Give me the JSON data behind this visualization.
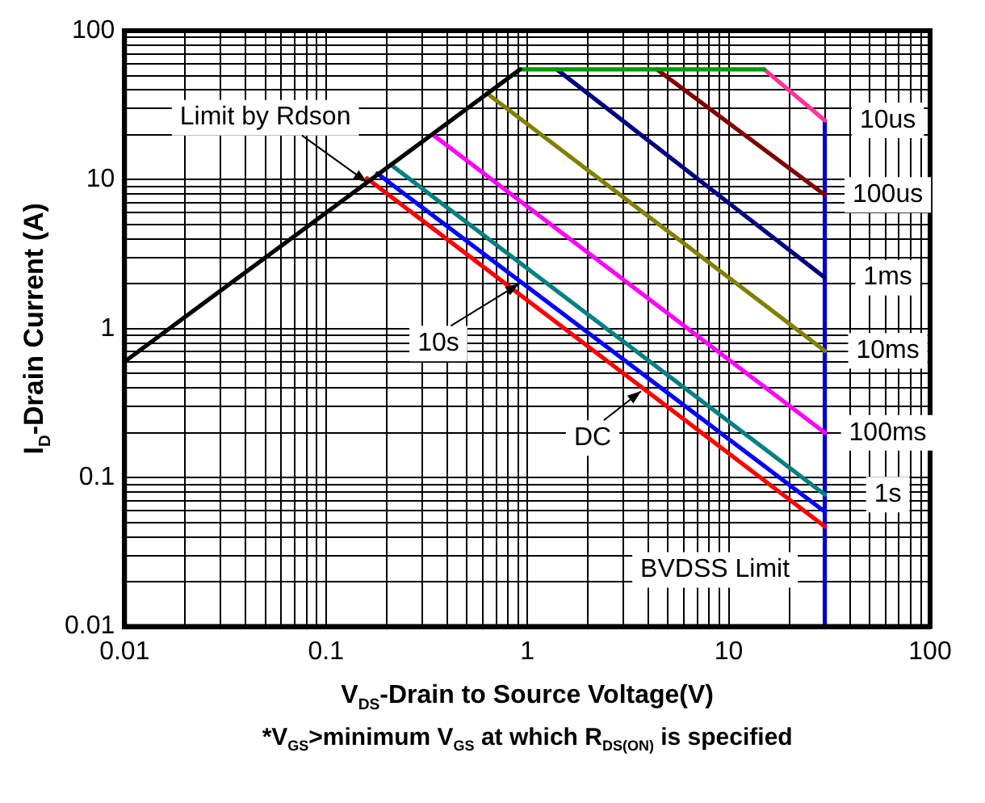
{
  "chart_data": {
    "type": "line",
    "xlabel": "V$_{DS}$-Drain to Source Voltage(V)",
    "ylabel": "I$_{D}$-Drain Current (A)",
    "log": "xy",
    "grid": true,
    "legend": false,
    "marker": "none",
    "line_style": "solid",
    "xlim": [
      0.01,
      100
    ],
    "ylim": [
      0.01,
      100
    ],
    "xticks": [
      0.01,
      {
        "value": 0.02,
        "label": null
      },
      {
        "value": 0.03,
        "label": null
      },
      {
        "value": 0.04,
        "label": null
      },
      {
        "value": 0.05,
        "label": null
      },
      {
        "value": 0.06,
        "label": null
      },
      {
        "value": 0.07,
        "label": null
      },
      {
        "value": 0.08,
        "label": null
      },
      {
        "value": 0.09,
        "label": null
      },
      0.1,
      {
        "value": 0.2,
        "label": null
      },
      {
        "value": 0.3,
        "label": null
      },
      {
        "value": 0.4,
        "label": null
      },
      {
        "value": 0.5,
        "label": null
      },
      {
        "value": 0.6,
        "label": null
      },
      {
        "value": 0.7,
        "label": null
      },
      {
        "value": 0.8,
        "label": null
      },
      {
        "value": 0.9,
        "label": null
      },
      1,
      {
        "value": 2,
        "label": null
      },
      {
        "value": 3,
        "label": null
      },
      {
        "value": 4,
        "label": null
      },
      {
        "value": 5,
        "label": null
      },
      {
        "value": 6,
        "label": null
      },
      {
        "value": 7,
        "label": null
      },
      {
        "value": 8,
        "label": null
      },
      {
        "value": 9,
        "label": null
      },
      10,
      {
        "value": 20,
        "label": null
      },
      {
        "value": 30,
        "label": null
      },
      {
        "value": 40,
        "label": null
      },
      {
        "value": 50,
        "label": null
      },
      {
        "value": 60,
        "label": null
      },
      {
        "value": 70,
        "label": null
      },
      {
        "value": 80,
        "label": null
      },
      {
        "value": 90,
        "label": null
      },
      100
    ],
    "yticks": [
      0.01,
      {
        "value": 0.02,
        "label": null
      },
      {
        "value": 0.03,
        "label": null
      },
      {
        "value": 0.04,
        "label": null
      },
      {
        "value": 0.05,
        "label": null
      },
      {
        "value": 0.06,
        "label": null
      },
      {
        "value": 0.07,
        "label": null
      },
      {
        "value": 0.08,
        "label": null
      },
      {
        "value": 0.09,
        "label": null
      },
      0.1,
      {
        "value": 0.2,
        "label": null
      },
      {
        "value": 0.3,
        "label": null
      },
      {
        "value": 0.4,
        "label": null
      },
      {
        "value": 0.5,
        "label": null
      },
      {
        "value": 0.6,
        "label": null
      },
      {
        "value": 0.7,
        "label": null
      },
      {
        "value": 0.8,
        "label": null
      },
      {
        "value": 0.9,
        "label": null
      },
      1,
      {
        "value": 2,
        "label": null
      },
      {
        "value": 3,
        "label": null
      },
      {
        "value": 4,
        "label": null
      },
      {
        "value": 5,
        "label": null
      },
      {
        "value": 6,
        "label": null
      },
      {
        "value": 7,
        "label": null
      },
      {
        "value": 8,
        "label": null
      },
      {
        "value": 9,
        "label": null
      },
      10,
      {
        "value": 20,
        "label": null
      },
      {
        "value": 30,
        "label": null
      },
      {
        "value": 40,
        "label": null
      },
      {
        "value": 50,
        "label": null
      },
      {
        "value": 60,
        "label": null
      },
      {
        "value": 70,
        "label": null
      },
      {
        "value": 80,
        "label": null
      },
      {
        "value": 90,
        "label": null
      },
      100
    ],
    "series": [
      {
        "color": "#000000",
        "x": [
          0.01,
          0.92
        ],
        "values": [
          0.6,
          55
        ]
      },
      {
        "color": "#009900",
        "x": [
          0.92,
          15
        ],
        "values": [
          55,
          55
        ]
      },
      {
        "name": "10us",
        "color": "#ff3399",
        "x": [
          15,
          30
        ],
        "values": [
          55,
          25
        ]
      },
      {
        "name": "100us",
        "color": "#800000",
        "x": [
          4.4,
          30
        ],
        "values": [
          55,
          7.9
        ]
      },
      {
        "name": "1ms",
        "color": "#000080",
        "x": [
          1.4,
          30
        ],
        "values": [
          55,
          2.2
        ]
      },
      {
        "name": "10ms",
        "color": "#808000",
        "x": [
          0.63,
          30
        ],
        "values": [
          38,
          0.71
        ]
      },
      {
        "name": "100ms",
        "color": "#ff00ff",
        "x": [
          0.34,
          30
        ],
        "values": [
          20,
          0.2
        ]
      },
      {
        "name": "1s",
        "color": "#008080",
        "x": [
          0.21,
          30
        ],
        "values": [
          12.6,
          0.077
        ]
      },
      {
        "color": "#0000ff",
        "x": [
          0.18,
          30
        ],
        "values": [
          11,
          0.059
        ]
      },
      {
        "color": "#ff0000",
        "x": [
          0.16,
          30
        ],
        "values": [
          10.2,
          0.047
        ]
      },
      {
        "color": "#0000cc",
        "x": [
          30,
          30
        ],
        "values": [
          25,
          0.01
        ]
      }
    ],
    "annotations": [
      {
        "text": "Limit by Rdson",
        "x": 0.16,
        "y": 9.6
      },
      {
        "text": "10s",
        "x": 0.91,
        "y": 2
      },
      {
        "text": "DC",
        "x": 3.67,
        "y": 0.38
      },
      {
        "text": "BVDSS Limit",
        "x": 30,
        "y": 0.024
      },
      "*V$_{GS}$>minimum V$_{GS}$ at which R$_{DS(ON)}$ is specified"
    ]
  }
}
